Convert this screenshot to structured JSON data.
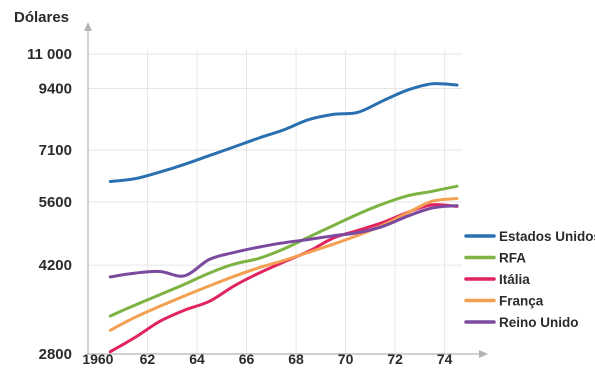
{
  "chart_data": {
    "type": "line",
    "ylabel": "Dólares",
    "xlabel": "",
    "x_tick_labels": [
      "1960",
      "62",
      "64",
      "66",
      "68",
      "70",
      "72",
      "74"
    ],
    "x_tick_values": [
      1960,
      1962,
      1964,
      1966,
      1968,
      1970,
      1972,
      1974
    ],
    "y_tick_labels": [
      "2800",
      "4200",
      "5600",
      "7100",
      "9400",
      "11 000"
    ],
    "y_tick_values": [
      2800,
      4200,
      5600,
      7100,
      9400,
      11000
    ],
    "y_scale": "log",
    "xlim": [
      1959.6,
      1974.7
    ],
    "ylim": [
      2800,
      11000
    ],
    "grid": true,
    "legend_position": "right",
    "x": [
      1960.5,
      1961.5,
      1962.5,
      1963.5,
      1964.5,
      1965.5,
      1966.5,
      1967.5,
      1968.5,
      1969.5,
      1970.5,
      1971.5,
      1972.5,
      1973.5,
      1974.5
    ],
    "series": [
      {
        "name": "Estados Unidos",
        "color": "#2a6fb0",
        "values": [
          6150,
          6230,
          6420,
          6650,
          6920,
          7200,
          7500,
          7780,
          8150,
          8350,
          8430,
          8880,
          9330,
          9600,
          9550
        ]
      },
      {
        "name": "RFA",
        "color": "#7cb342",
        "values": [
          3330,
          3500,
          3670,
          3850,
          4050,
          4220,
          4330,
          4520,
          4770,
          5030,
          5300,
          5550,
          5760,
          5880,
          6020
        ]
      },
      {
        "name": "Itália",
        "color": "#e0245e",
        "values": [
          2830,
          3020,
          3250,
          3420,
          3560,
          3820,
          4050,
          4260,
          4470,
          4750,
          4920,
          5100,
          5340,
          5530,
          5490
        ]
      },
      {
        "name": "França",
        "color": "#f4a052",
        "values": [
          3120,
          3310,
          3480,
          3650,
          3820,
          3990,
          4150,
          4290,
          4450,
          4620,
          4810,
          5040,
          5330,
          5620,
          5690
        ]
      },
      {
        "name": "Reino Unido",
        "color": "#7b4a9e",
        "values": [
          3980,
          4050,
          4080,
          4000,
          4310,
          4450,
          4560,
          4650,
          4720,
          4800,
          4870,
          5010,
          5250,
          5450,
          5510
        ]
      }
    ]
  }
}
